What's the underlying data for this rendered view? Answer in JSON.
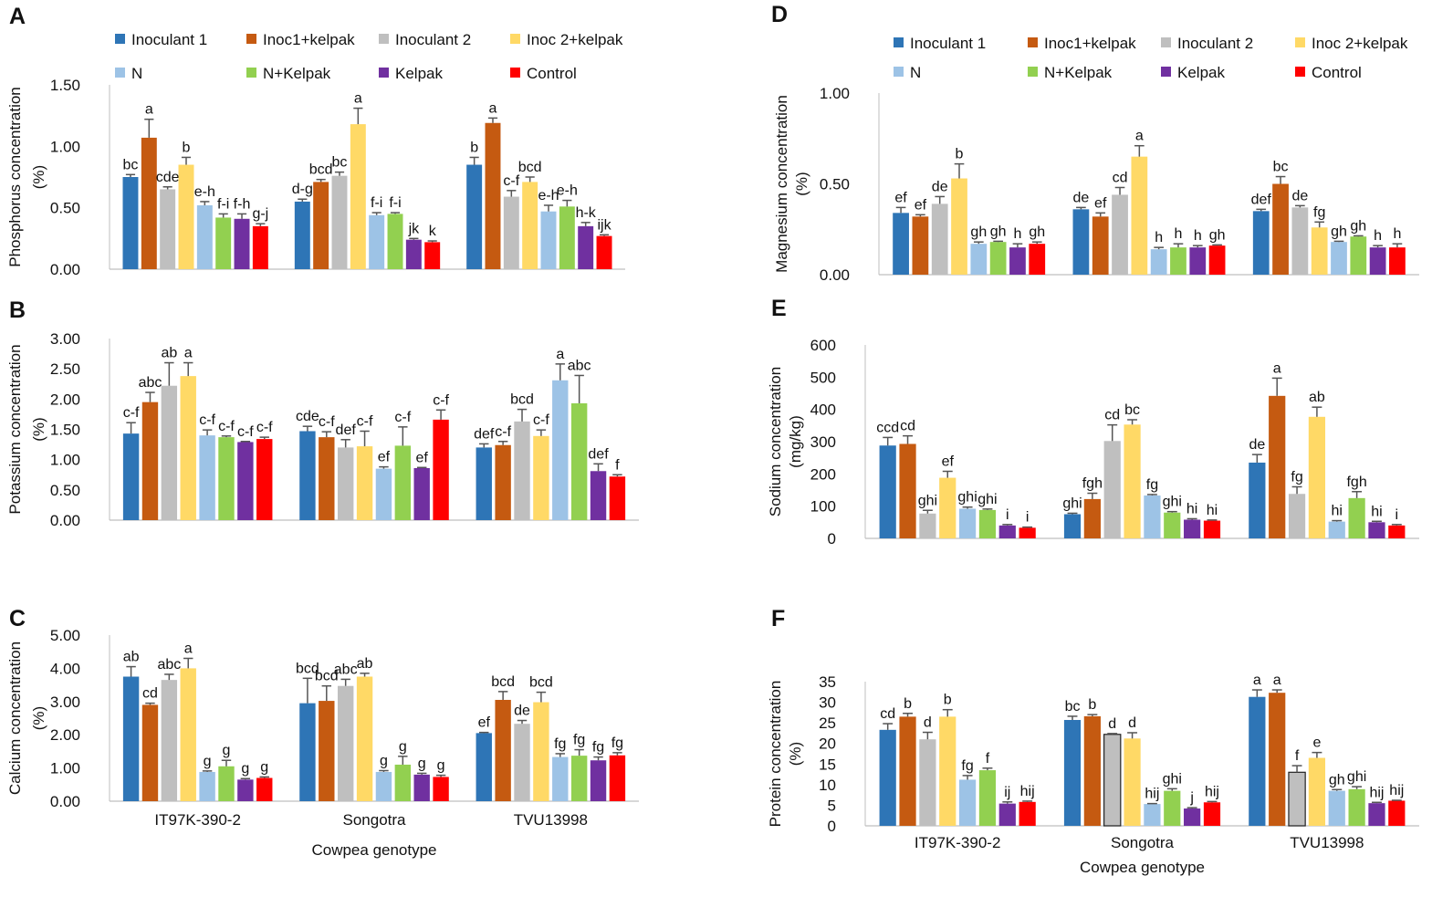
{
  "figure": {
    "genotypes": [
      "IT97K-390-2",
      "Songotra",
      "TVU13998"
    ],
    "xlabel": "Cowpea genotype",
    "colors": [
      "#2E75B6",
      "#C55A11",
      "#BFBFBF",
      "#FFD966",
      "#9DC3E6",
      "#92D050",
      "#7030A0",
      "#FF0000"
    ]
  },
  "chart_data": [
    {
      "panel": "A",
      "type": "bar",
      "ylabel": [
        "Phosphorus concentration",
        "(%)"
      ],
      "yticks": [
        "0.00",
        "0.50",
        "1.00",
        "1.50"
      ],
      "ylim": [
        0,
        1.5
      ],
      "categories": [
        "IT97K-390-2",
        "Songotra",
        "TVU13998"
      ],
      "series": [
        {
          "name": "Inoculant 1",
          "values": [
            0.75,
            0.55,
            0.85
          ],
          "errors": [
            0.02,
            0.02,
            0.06
          ],
          "labels": [
            "bc",
            "d-g",
            "b"
          ]
        },
        {
          "name": "Inoc1+kelpak",
          "values": [
            1.07,
            0.71,
            1.19
          ],
          "errors": [
            0.15,
            0.02,
            0.04
          ],
          "labels": [
            "a",
            "bcd",
            "a"
          ]
        },
        {
          "name": "Inoculant 2",
          "values": [
            0.65,
            0.76,
            0.59
          ],
          "errors": [
            0.02,
            0.03,
            0.05
          ],
          "labels": [
            "cde",
            "bc",
            "c-f"
          ]
        },
        {
          "name": "Inoc 2+kelpak",
          "values": [
            0.85,
            1.18,
            0.71
          ],
          "errors": [
            0.06,
            0.13,
            0.04
          ],
          "labels": [
            "b",
            "a",
            "bcd"
          ]
        },
        {
          "name": "N",
          "values": [
            0.52,
            0.44,
            0.47
          ],
          "errors": [
            0.03,
            0.02,
            0.05
          ],
          "labels": [
            "e-h",
            "f-i",
            "e-h"
          ]
        },
        {
          "name": "N+Kelpak",
          "values": [
            0.42,
            0.45,
            0.51
          ],
          "errors": [
            0.03,
            0.01,
            0.05
          ],
          "labels": [
            "f-i",
            "f-i",
            "e-h"
          ]
        },
        {
          "name": "Kelpak",
          "values": [
            0.41,
            0.24,
            0.35
          ],
          "errors": [
            0.04,
            0.01,
            0.03
          ],
          "labels": [
            "f-h",
            "jk",
            "h-k"
          ]
        },
        {
          "name": "Control",
          "values": [
            0.35,
            0.22,
            0.27
          ],
          "errors": [
            0.02,
            0.01,
            0.01
          ],
          "labels": [
            "g-j",
            "k",
            "ijk"
          ]
        }
      ]
    },
    {
      "panel": "B",
      "type": "bar",
      "ylabel": [
        "Potassium concentration",
        "(%)"
      ],
      "yticks": [
        "0.00",
        "0.50",
        "1.00",
        "1.50",
        "2.00",
        "2.50",
        "3.00"
      ],
      "ylim": [
        0,
        3
      ],
      "categories": [
        "IT97K-390-2",
        "Songotra",
        "TVU13998"
      ],
      "series": [
        {
          "name": "Inoculant 1",
          "values": [
            1.43,
            1.47,
            1.2
          ],
          "errors": [
            0.18,
            0.08,
            0.06
          ],
          "labels": [
            "c-f",
            "cde",
            "def"
          ]
        },
        {
          "name": "Inoc1+kelpak",
          "values": [
            1.95,
            1.37,
            1.24
          ],
          "errors": [
            0.16,
            0.09,
            0.06
          ],
          "labels": [
            "abc",
            "c-f",
            "c-f"
          ]
        },
        {
          "name": "Inoculant 2",
          "values": [
            2.22,
            1.2,
            1.63
          ],
          "errors": [
            0.38,
            0.13,
            0.2
          ],
          "labels": [
            "ab",
            "def",
            "bcd"
          ]
        },
        {
          "name": "Inoc 2+kelpak",
          "values": [
            2.38,
            1.22,
            1.39
          ],
          "errors": [
            0.22,
            0.25,
            0.1
          ],
          "labels": [
            "a",
            "c-f",
            "c-f"
          ]
        },
        {
          "name": "N",
          "values": [
            1.4,
            0.85,
            2.31
          ],
          "errors": [
            0.09,
            0.03,
            0.27
          ],
          "labels": [
            "c-f",
            "ef",
            "a"
          ]
        },
        {
          "name": "N+Kelpak",
          "values": [
            1.37,
            1.23,
            1.93
          ],
          "errors": [
            0.02,
            0.31,
            0.46
          ],
          "labels": [
            "c-f",
            "c-f",
            "abc"
          ]
        },
        {
          "name": "Kelpak",
          "values": [
            1.29,
            0.86,
            0.81
          ],
          "errors": [
            0.01,
            0.01,
            0.12
          ],
          "labels": [
            "c-f",
            "ef",
            "def"
          ]
        },
        {
          "name": "Control",
          "values": [
            1.34,
            1.66,
            0.72
          ],
          "errors": [
            0.03,
            0.16,
            0.03
          ],
          "labels": [
            "c-f",
            "c-f",
            "f"
          ]
        }
      ]
    },
    {
      "panel": "C",
      "type": "bar",
      "ylabel": [
        "Calcium concentration",
        "(%)"
      ],
      "yticks": [
        "0.00",
        "1.00",
        "2.00",
        "3.00",
        "4.00",
        "5.00"
      ],
      "ylim": [
        0,
        5
      ],
      "categories": [
        "IT97K-390-2",
        "Songotra",
        "TVU13998"
      ],
      "series": [
        {
          "name": "Inoculant 1",
          "values": [
            3.75,
            2.95,
            2.05
          ],
          "errors": [
            0.3,
            0.75,
            0.02
          ],
          "labels": [
            "ab",
            "bcd",
            "ef"
          ]
        },
        {
          "name": "Inoc1+kelpak",
          "values": [
            2.9,
            3.02,
            3.05
          ],
          "errors": [
            0.05,
            0.45,
            0.25
          ],
          "labels": [
            "cd",
            "bcd",
            "bcd"
          ]
        },
        {
          "name": "Inoculant 2",
          "values": [
            3.65,
            3.47,
            2.33
          ],
          "errors": [
            0.17,
            0.2,
            0.1
          ],
          "labels": [
            "abc",
            "abc",
            "de"
          ]
        },
        {
          "name": "Inoc 2+kelpak",
          "values": [
            4.0,
            3.75,
            2.98
          ],
          "errors": [
            0.3,
            0.1,
            0.3
          ],
          "labels": [
            "a",
            "ab",
            "bcd"
          ]
        },
        {
          "name": "N",
          "values": [
            0.88,
            0.88,
            1.33
          ],
          "errors": [
            0.03,
            0.04,
            0.1
          ],
          "labels": [
            "g",
            "g",
            "fg"
          ]
        },
        {
          "name": "N+Kelpak",
          "values": [
            1.05,
            1.1,
            1.37
          ],
          "errors": [
            0.18,
            0.25,
            0.18
          ],
          "labels": [
            "g",
            "g",
            "fg"
          ]
        },
        {
          "name": "Kelpak",
          "values": [
            0.65,
            0.8,
            1.23
          ],
          "errors": [
            0.03,
            0.04,
            0.1
          ],
          "labels": [
            "g",
            "g",
            "fg"
          ]
        },
        {
          "name": "Control",
          "values": [
            0.7,
            0.73,
            1.38
          ],
          "errors": [
            0.03,
            0.05,
            0.08
          ],
          "labels": [
            "g",
            "g",
            "fg"
          ]
        }
      ]
    },
    {
      "panel": "D",
      "type": "bar",
      "ylabel": [
        "Magnesium concentration",
        "(%)"
      ],
      "yticks": [
        "0.00",
        "0.50",
        "1.00"
      ],
      "ylim": [
        0,
        1
      ],
      "categories": [
        "IT97K-390-2",
        "Songotra",
        "TVU13998"
      ],
      "series": [
        {
          "name": "Inoculant 1",
          "values": [
            0.34,
            0.36,
            0.35
          ],
          "errors": [
            0.03,
            0.01,
            0.01
          ],
          "labels": [
            "ef",
            "de",
            "def"
          ]
        },
        {
          "name": "Inoc1+kelpak",
          "values": [
            0.32,
            0.32,
            0.5
          ],
          "errors": [
            0.01,
            0.02,
            0.04
          ],
          "labels": [
            "ef",
            "ef",
            "bc"
          ]
        },
        {
          "name": "Inoculant 2",
          "values": [
            0.39,
            0.44,
            0.37
          ],
          "errors": [
            0.04,
            0.04,
            0.01
          ],
          "labels": [
            "de",
            "cd",
            "de"
          ]
        },
        {
          "name": "Inoc 2+kelpak",
          "values": [
            0.53,
            0.65,
            0.26
          ],
          "errors": [
            0.08,
            0.06,
            0.03
          ],
          "labels": [
            "b",
            "a",
            "fg"
          ]
        },
        {
          "name": "N",
          "values": [
            0.17,
            0.14,
            0.18
          ],
          "errors": [
            0.01,
            0.01,
            0.004
          ],
          "labels": [
            "gh",
            "h",
            "gh"
          ]
        },
        {
          "name": "N+Kelpak",
          "values": [
            0.18,
            0.15,
            0.21
          ],
          "errors": [
            0.004,
            0.02,
            0.004
          ],
          "labels": [
            "gh",
            "h",
            "gh"
          ]
        },
        {
          "name": "Kelpak",
          "values": [
            0.15,
            0.15,
            0.15
          ],
          "errors": [
            0.02,
            0.01,
            0.01
          ],
          "labels": [
            "h",
            "h",
            "h"
          ]
        },
        {
          "name": "Control",
          "values": [
            0.17,
            0.16,
            0.15
          ],
          "errors": [
            0.01,
            0.004,
            0.02
          ],
          "labels": [
            "gh",
            "gh",
            "h"
          ]
        }
      ]
    },
    {
      "panel": "E",
      "type": "bar",
      "ylabel": [
        "Sodium concentration",
        "(mg/kg)"
      ],
      "yticks": [
        "0",
        "100",
        "200",
        "300",
        "400",
        "500",
        "600"
      ],
      "ylim": [
        0,
        600
      ],
      "categories": [
        "IT97K-390-2",
        "Songotra",
        "TVU13998"
      ],
      "series": [
        {
          "name": "Inoculant 1",
          "values": [
            288,
            75,
            235
          ],
          "errors": [
            25,
            3,
            25
          ],
          "labels": [
            "ccd",
            "ghi",
            "de"
          ]
        },
        {
          "name": "Inoc1+kelpak",
          "values": [
            293,
            122,
            442
          ],
          "errors": [
            25,
            18,
            55
          ],
          "labels": [
            "cd",
            "fgh",
            "a"
          ]
        },
        {
          "name": "Inoculant 2",
          "values": [
            77,
            302,
            138
          ],
          "errors": [
            10,
            50,
            22
          ],
          "labels": [
            "ghi",
            "cd",
            "fg"
          ]
        },
        {
          "name": "Inoc 2+kelpak",
          "values": [
            188,
            353,
            377
          ],
          "errors": [
            20,
            15,
            30
          ],
          "labels": [
            "ef",
            "bc",
            "ab"
          ]
        },
        {
          "name": "N",
          "values": [
            92,
            133,
            52
          ],
          "errors": [
            5,
            3,
            3
          ],
          "labels": [
            "ghi",
            "fg",
            "hi"
          ]
        },
        {
          "name": "N+Kelpak",
          "values": [
            88,
            80,
            125
          ],
          "errors": [
            3,
            3,
            20
          ],
          "labels": [
            "ghi",
            "ghi",
            "fgh"
          ]
        },
        {
          "name": "Kelpak",
          "values": [
            40,
            58,
            50
          ],
          "errors": [
            3,
            3,
            3
          ],
          "labels": [
            "i",
            "hi",
            "hi"
          ]
        },
        {
          "name": "Control",
          "values": [
            33,
            55,
            40
          ],
          "errors": [
            2,
            2,
            3
          ],
          "labels": [
            "i",
            "hi",
            "i"
          ]
        }
      ]
    },
    {
      "panel": "F",
      "type": "bar",
      "ylabel": [
        "Protein concentration",
        "(%)"
      ],
      "yticks": [
        "0",
        "5",
        "10",
        "15",
        "20",
        "25",
        "30",
        "35"
      ],
      "ylim": [
        0,
        35
      ],
      "categories": [
        "IT97K-390-2",
        "Songotra",
        "TVU13998"
      ],
      "series": [
        {
          "name": "Inoculant 1",
          "values": [
            23.3,
            25.7,
            31.3
          ],
          "errors": [
            1.5,
            0.9,
            1.7
          ],
          "labels": [
            "cd",
            "bc",
            "a"
          ]
        },
        {
          "name": "Inoc1+kelpak",
          "values": [
            26.5,
            26.6,
            32.3
          ],
          "errors": [
            0.8,
            0.4,
            0.7
          ],
          "labels": [
            "b",
            "b",
            "a"
          ]
        },
        {
          "name": "Inoculant 2",
          "values": [
            21.0,
            22.2,
            13.0
          ],
          "errors": [
            1.7,
            0.2,
            1.6
          ],
          "labels": [
            "d",
            "d",
            "f"
          ]
        },
        {
          "name": "Inoc 2+kelpak",
          "values": [
            26.5,
            21.2,
            16.5
          ],
          "errors": [
            1.7,
            1.4,
            1.3
          ],
          "labels": [
            "b",
            "d",
            "e"
          ]
        },
        {
          "name": "N",
          "values": [
            11.2,
            5.3,
            8.5
          ],
          "errors": [
            1.0,
            0.1,
            0.3
          ],
          "labels": [
            "fg",
            "hij",
            "gh"
          ]
        },
        {
          "name": "N+Kelpak",
          "values": [
            13.5,
            8.5,
            8.9
          ],
          "errors": [
            0.5,
            0.5,
            0.6
          ],
          "labels": [
            "f",
            "ghi",
            "ghi"
          ]
        },
        {
          "name": "Kelpak",
          "values": [
            5.4,
            4.2,
            5.5
          ],
          "errors": [
            0.4,
            0.2,
            0.2
          ],
          "labels": [
            "ij",
            "j",
            "hij"
          ]
        },
        {
          "name": "Control",
          "values": [
            5.8,
            5.7,
            6.1
          ],
          "errors": [
            0.2,
            0.2,
            0.1
          ],
          "labels": [
            "hij",
            "hij",
            "hij"
          ]
        }
      ]
    }
  ]
}
